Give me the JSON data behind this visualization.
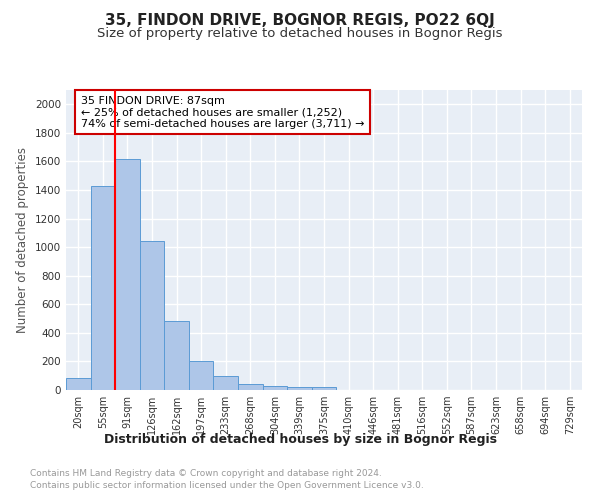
{
  "title": "35, FINDON DRIVE, BOGNOR REGIS, PO22 6QJ",
  "subtitle": "Size of property relative to detached houses in Bognor Regis",
  "xlabel": "Distribution of detached houses by size in Bognor Regis",
  "ylabel": "Number of detached properties",
  "footnote1": "Contains HM Land Registry data © Crown copyright and database right 2024.",
  "footnote2": "Contains public sector information licensed under the Open Government Licence v3.0.",
  "bin_labels": [
    "20sqm",
    "55sqm",
    "91sqm",
    "126sqm",
    "162sqm",
    "197sqm",
    "233sqm",
    "268sqm",
    "304sqm",
    "339sqm",
    "375sqm",
    "410sqm",
    "446sqm",
    "481sqm",
    "516sqm",
    "552sqm",
    "587sqm",
    "623sqm",
    "658sqm",
    "694sqm",
    "729sqm"
  ],
  "bar_values": [
    85,
    1425,
    1620,
    1045,
    485,
    205,
    100,
    42,
    28,
    22,
    18,
    0,
    0,
    0,
    0,
    0,
    0,
    0,
    0,
    0,
    0
  ],
  "bar_color": "#aec6e8",
  "bar_edge_color": "#5b9bd5",
  "background_color": "#e8eef6",
  "grid_color": "#ffffff",
  "annotation_text": "35 FINDON DRIVE: 87sqm\n← 25% of detached houses are smaller (1,252)\n74% of semi-detached houses are larger (3,711) →",
  "annotation_box_color": "#ffffff",
  "annotation_box_edge": "#cc0000",
  "ylim": [
    0,
    2100
  ],
  "yticks": [
    0,
    200,
    400,
    600,
    800,
    1000,
    1200,
    1400,
    1600,
    1800,
    2000
  ],
  "title_fontsize": 11,
  "subtitle_fontsize": 9.5,
  "xlabel_fontsize": 9,
  "ylabel_fontsize": 8.5,
  "annotation_fontsize": 8,
  "footnote_fontsize": 6.5,
  "tick_label_fontsize": 7
}
